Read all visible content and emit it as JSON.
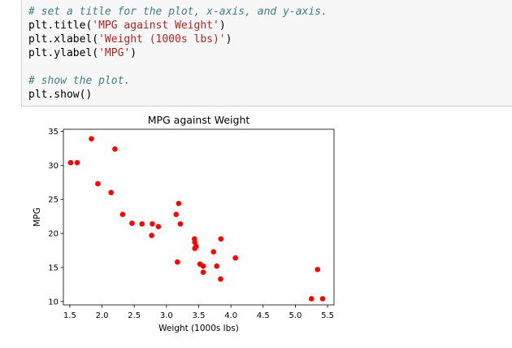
{
  "code_cell": {
    "lines": [
      {
        "type": "comment",
        "text": "# set a title for the plot, x-axis, and y-axis."
      },
      {
        "type": "call",
        "fn": "plt.title(",
        "arg": "'MPG against Weight'",
        "end": ")"
      },
      {
        "type": "call",
        "fn": "plt.xlabel(",
        "arg": "'Weight (1000s lbs)'",
        "end": ")"
      },
      {
        "type": "call",
        "fn": "plt.ylabel(",
        "arg": "'MPG'",
        "end": ")"
      },
      {
        "type": "blank",
        "text": ""
      },
      {
        "type": "comment",
        "text": "# show the plot."
      },
      {
        "type": "plain",
        "text": "plt.show()"
      }
    ]
  },
  "chart_data": {
    "type": "scatter",
    "title": "MPG against Weight",
    "xlabel": "Weight (1000s lbs)",
    "ylabel": "MPG",
    "xlim": [
      1.4,
      5.6
    ],
    "ylim": [
      9.5,
      35.3
    ],
    "xticks": [
      1.5,
      2.0,
      2.5,
      3.0,
      3.5,
      4.0,
      4.5,
      5.0,
      5.5
    ],
    "xtick_labels": [
      "1.5",
      "2.0",
      "2.5",
      "3.0",
      "3.5",
      "4.0",
      "4.5",
      "5.0",
      "5.5"
    ],
    "yticks": [
      10,
      15,
      20,
      25,
      30,
      35
    ],
    "ytick_labels": [
      "10",
      "15",
      "20",
      "25",
      "30",
      "35"
    ],
    "marker_color": "#ff0000",
    "grid": false,
    "x": [
      1.513,
      1.615,
      1.835,
      1.935,
      2.14,
      2.2,
      2.32,
      2.465,
      2.62,
      2.77,
      2.78,
      2.875,
      3.15,
      3.17,
      3.19,
      3.215,
      3.435,
      3.44,
      3.44,
      3.46,
      3.52,
      3.57,
      3.57,
      3.73,
      3.78,
      3.84,
      3.845,
      4.07,
      5.25,
      5.345,
      5.424
    ],
    "y": [
      30.4,
      30.4,
      33.9,
      27.3,
      26.0,
      32.4,
      22.8,
      21.5,
      21.4,
      19.7,
      21.4,
      21.0,
      22.8,
      15.8,
      24.4,
      21.4,
      19.2,
      17.8,
      18.7,
      18.1,
      15.5,
      15.2,
      14.3,
      17.3,
      15.2,
      13.3,
      19.2,
      16.4,
      10.4,
      14.7,
      10.4
    ]
  }
}
